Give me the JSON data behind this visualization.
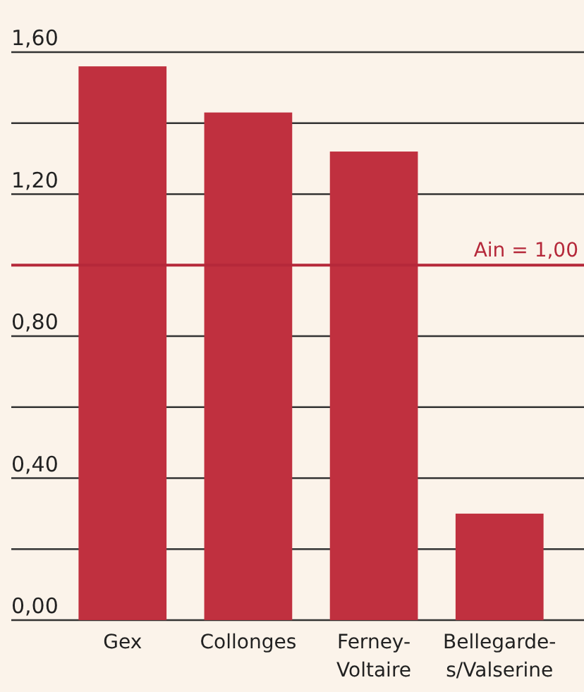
{
  "chart_data": {
    "type": "bar",
    "categories": [
      "Gex",
      "Collonges",
      "Ferney-Voltaire",
      "Bellegarde-s/Valserine"
    ],
    "values": [
      1.56,
      1.43,
      1.32,
      0.3
    ],
    "color": "#c0303f",
    "ylim": [
      0,
      1.6
    ],
    "yticks": [
      {
        "value": 0,
        "label": "0,00"
      },
      {
        "value": 0.2,
        "label": null
      },
      {
        "value": 0.4,
        "label": "0,40"
      },
      {
        "value": 0.6,
        "label": null
      },
      {
        "value": 0.8,
        "label": "0,80"
      },
      {
        "value": 1,
        "label": null
      },
      {
        "value": 1.2,
        "label": "1,20"
      },
      {
        "value": 1.4,
        "label": null
      },
      {
        "value": 1.6,
        "label": "1,60"
      }
    ],
    "grid": "y",
    "ref_lines": [
      {
        "axis": "y",
        "value": 1,
        "label": "Ain = 1,00",
        "color": "#b5283a"
      }
    ]
  }
}
